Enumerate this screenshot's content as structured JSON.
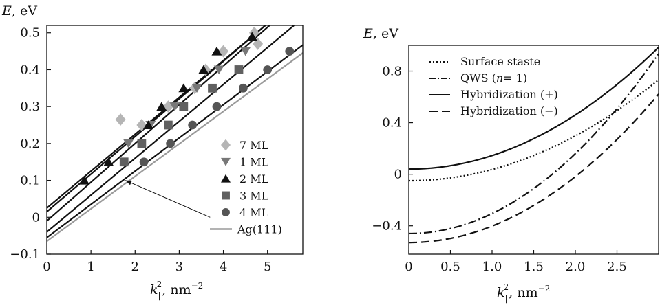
{
  "chart_data": [
    {
      "type": "scatter",
      "ylabel_var": "E",
      "ylabel_unit": ", eV",
      "xlabel_var": "k",
      "xlabel_sub": "||",
      "xlabel_sup": "2",
      "xlabel_unit": ", nm",
      "xlabel_unit_sup": "−2",
      "xlim": [
        0,
        5.8
      ],
      "ylim": [
        -0.1,
        0.52
      ],
      "xticks": [
        "0",
        "1",
        "2",
        "3",
        "4",
        "5"
      ],
      "yticks": [
        "0.5",
        "0.4",
        "0.3",
        "0.2",
        "0.1",
        "0",
        "−0.1"
      ],
      "grid": false,
      "legend_position": "bottom-right",
      "series": [
        {
          "name": "7 ML",
          "marker": "diamond",
          "color": "#b5b5b5",
          "x": [
            1.67,
            2.15,
            2.75,
            3.35,
            3.6,
            4.0,
            4.7,
            4.78
          ],
          "y": [
            0.265,
            0.25,
            0.3,
            0.35,
            0.4,
            0.45,
            0.5,
            0.47
          ],
          "fit": {
            "intercept": 0.025,
            "slope": 0.1
          }
        },
        {
          "name": "1 ML",
          "marker": "triangle-down",
          "color": "#777777",
          "x": [
            1.85,
            2.35,
            2.9,
            3.4,
            3.9,
            4.5
          ],
          "y": [
            0.2,
            0.25,
            0.3,
            0.35,
            0.4,
            0.45
          ],
          "fit": {
            "intercept": -0.01,
            "slope": 0.105
          }
        },
        {
          "name": "2 ML",
          "marker": "triangle-up",
          "color": "#111111",
          "x": [
            0.85,
            1.4,
            2.3,
            2.6,
            3.1,
            3.55,
            3.85,
            4.65
          ],
          "y": [
            0.1,
            0.15,
            0.25,
            0.3,
            0.35,
            0.4,
            0.45,
            0.49
          ],
          "fit": {
            "intercept": 0.015,
            "slope": 0.102
          }
        },
        {
          "name": "3 ML",
          "marker": "square",
          "color": "#606060",
          "x": [
            1.75,
            2.15,
            2.75,
            3.1,
            3.75,
            4.35
          ],
          "y": [
            0.15,
            0.2,
            0.25,
            0.3,
            0.35,
            0.4
          ],
          "fit": {
            "intercept": -0.04,
            "slope": 0.1
          }
        },
        {
          "name": "4 ML",
          "marker": "circle",
          "color": "#555555",
          "x": [
            2.2,
            2.8,
            3.3,
            3.85,
            4.45,
            5.0,
            5.5
          ],
          "y": [
            0.15,
            0.2,
            0.25,
            0.3,
            0.35,
            0.4,
            0.45
          ],
          "fit": {
            "intercept": -0.055,
            "slope": 0.09
          }
        },
        {
          "name": "Ag(111)",
          "marker": "line",
          "color": "#9a9a9a",
          "fit": {
            "intercept": -0.065,
            "slope": 0.088
          }
        }
      ],
      "annotation_arrow": {
        "from": [
          3.7,
          0.0
        ],
        "to": [
          1.78,
          0.1
        ]
      }
    },
    {
      "type": "line",
      "ylabel_var": "E",
      "ylabel_unit": ", eV",
      "xlabel_var": "k",
      "xlabel_sub": "||",
      "xlabel_sup": "2",
      "xlabel_unit": ", nm",
      "xlabel_unit_sup": "−2",
      "xlim": [
        0,
        3.0
      ],
      "ylim": [
        -0.62,
        1.0
      ],
      "xticks": [
        "0",
        "0.5",
        "1.0",
        "1.5",
        "2.0",
        "2.5"
      ],
      "yticks": [
        "0.8",
        "0.4",
        "0",
        "−0.4"
      ],
      "grid": false,
      "legend_position": "top-left",
      "series": [
        {
          "name": "Surface staste",
          "style": "dotted",
          "curve": {
            "e0": -0.05,
            "a": 0.087
          }
        },
        {
          "name": "QWS (n= 1)",
          "style": "dashdot",
          "curve": {
            "e0": -0.46,
            "a": 0.155
          }
        },
        {
          "name": "Hybridization (+)",
          "style": "solid",
          "curve": {
            "e0": 0.04,
            "a": 0.105
          }
        },
        {
          "name": "Hybridization (−)",
          "style": "dashed",
          "curve": {
            "e0": -0.53,
            "a": 0.128
          }
        }
      ]
    }
  ],
  "legend_right": {
    "qws_prefix": "QWS (",
    "qws_var": "n",
    "qws_suffix": "= 1)"
  }
}
